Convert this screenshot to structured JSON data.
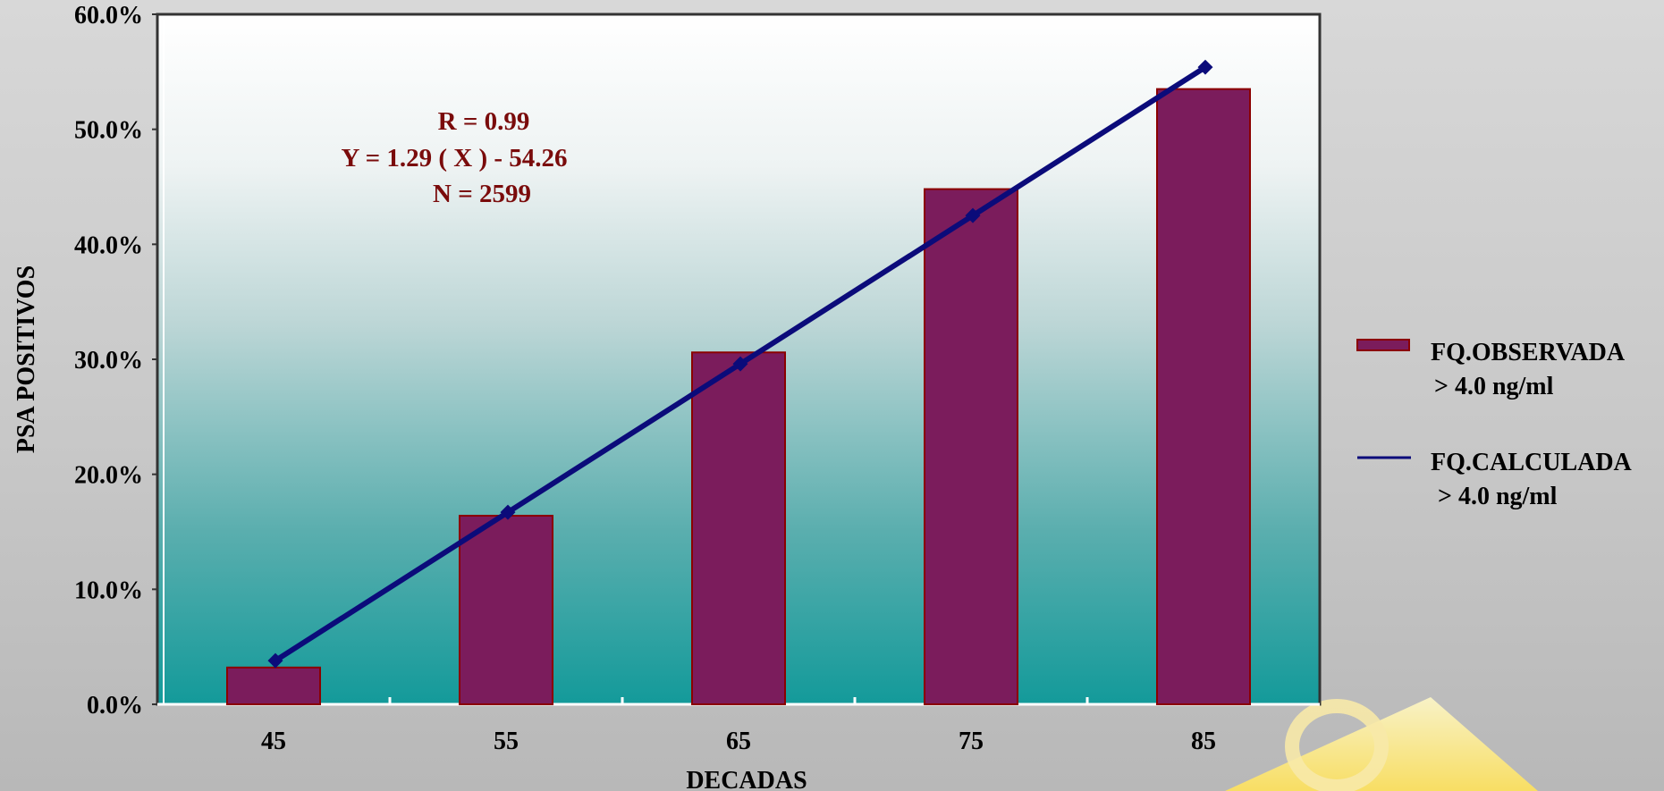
{
  "chart_data": {
    "type": "bar",
    "categories": [
      "45",
      "55",
      "65",
      "75",
      "85"
    ],
    "series": [
      {
        "name": "FQ.OBSERVADA\n> 4.0 ng/ml",
        "type": "bar",
        "values": [
          3.2,
          16.4,
          30.6,
          44.8,
          53.5
        ],
        "color": "#7b1c5c",
        "border": "#8b0000"
      },
      {
        "name": "FQ.CALCULADA\n> 4.0 ng/ml",
        "type": "line",
        "values": [
          3.8,
          16.7,
          29.6,
          42.5,
          55.4
        ],
        "color": "#0b0b7a"
      }
    ],
    "xlabel": "DECADAS",
    "ylabel": "PSA POSITIVOS",
    "ylim": [
      0,
      60
    ],
    "yticks": [
      "0.0%",
      "10.0%",
      "20.0%",
      "30.0%",
      "40.0%",
      "50.0%",
      "60.0%"
    ],
    "annotation": [
      "R = 0.99",
      "Y = 1.29 ( X ) - 54.26",
      "N = 2599"
    ],
    "legend": [
      {
        "line1": "FQ.OBSERVADA",
        "line2": "> 4.0 ng/ml"
      },
      {
        "line1": "FQ.CALCULADA",
        "line2": "> 4.0 ng/ml"
      }
    ],
    "legend_position": "right",
    "plot_background_gradient": [
      "#ffffff",
      "#139a9a"
    ]
  }
}
